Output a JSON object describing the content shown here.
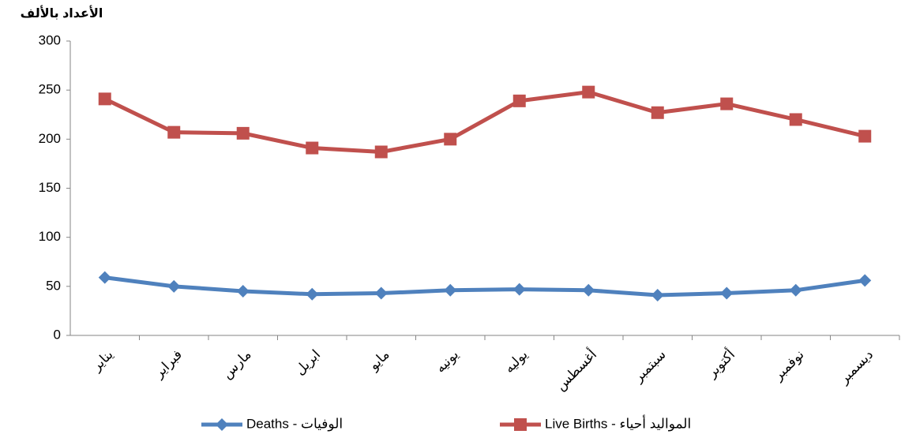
{
  "chart_data": {
    "type": "line",
    "y_label": "الأعداد بالألف",
    "categories": [
      "يناير",
      "فبراير",
      "مارس",
      "ابريل",
      "مايو",
      "يونيه",
      "يوليه",
      "أغسطس",
      "سبتمبر",
      "أكتوبر",
      "نوفمبر",
      "ديسمبر"
    ],
    "series": [
      {
        "name": "الوفيات - Deaths",
        "color": "#4f81bd",
        "marker": "diamond",
        "values": [
          59,
          50,
          45,
          42,
          43,
          46,
          47,
          46,
          41,
          43,
          46,
          56
        ]
      },
      {
        "name": "المواليد أحياء - Live Births",
        "color": "#c0504d",
        "marker": "square",
        "values": [
          241,
          207,
          206,
          191,
          187,
          200,
          239,
          248,
          227,
          236,
          220,
          203
        ]
      }
    ],
    "ylim": [
      0,
      300
    ],
    "yticks": [
      0,
      50,
      100,
      150,
      200,
      250,
      300
    ],
    "grid": false,
    "legend": "bottom"
  }
}
